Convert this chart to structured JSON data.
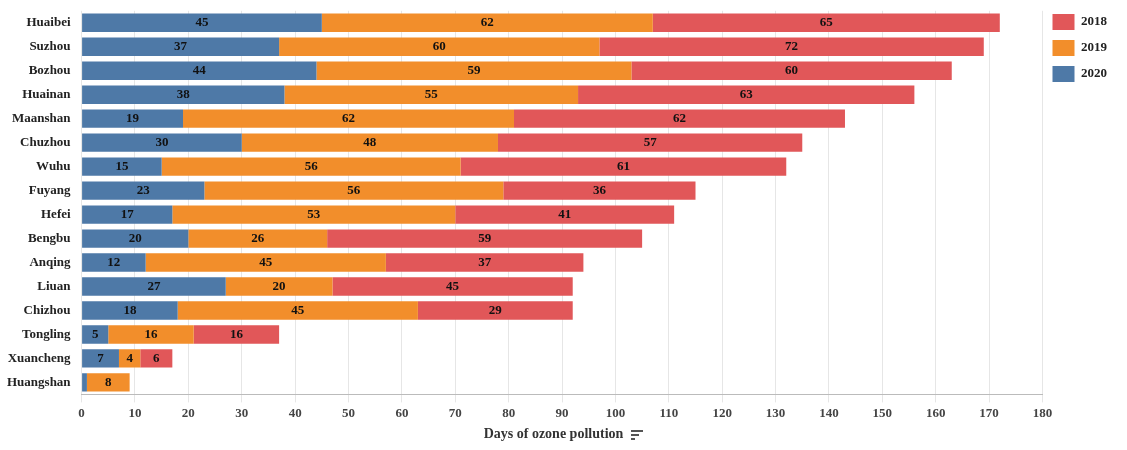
{
  "chart_data": {
    "type": "bar",
    "orientation": "horizontal",
    "stacked": true,
    "xlabel": "Days of ozone pollution",
    "categories": [
      "Huaibei",
      "Suzhou",
      "Bozhou",
      "Huainan",
      "Maanshan",
      "Chuzhou",
      "Wuhu",
      "Fuyang",
      "Hefei",
      "Bengbu",
      "Anqing",
      "Liuan",
      "Chizhou",
      "Tongling",
      "Xuancheng",
      "Huangshan"
    ],
    "series": [
      {
        "name": "2020",
        "color": "#4e79a7",
        "values": [
          45,
          37,
          44,
          38,
          19,
          30,
          15,
          23,
          17,
          20,
          12,
          27,
          18,
          5,
          7,
          1
        ],
        "value_labels": [
          "45",
          "37",
          "44",
          "38",
          "19",
          "30",
          "15",
          "23",
          "17",
          "20",
          "12",
          "27",
          "18",
          "5",
          "7",
          null
        ]
      },
      {
        "name": "2019",
        "color": "#f28e2b",
        "values": [
          62,
          60,
          59,
          55,
          62,
          48,
          56,
          56,
          53,
          26,
          45,
          20,
          45,
          16,
          4,
          8
        ],
        "value_labels": [
          "62",
          "60",
          "59",
          "55",
          "62",
          "48",
          "56",
          "56",
          "53",
          "26",
          "45",
          "20",
          "45",
          "16",
          "4",
          "8"
        ]
      },
      {
        "name": "2018",
        "color": "#e15759",
        "values": [
          65,
          72,
          60,
          63,
          62,
          57,
          61,
          36,
          41,
          59,
          37,
          45,
          29,
          16,
          6,
          null
        ],
        "value_labels": [
          "65",
          "72",
          "60",
          "63",
          "62",
          "57",
          "61",
          "36",
          "41",
          "59",
          "37",
          "45",
          "29",
          "16",
          "6",
          null
        ]
      }
    ],
    "xlim": [
      0,
      180
    ],
    "xticks": [
      0,
      10,
      20,
      30,
      40,
      50,
      60,
      70,
      80,
      90,
      100,
      110,
      120,
      130,
      140,
      150,
      160,
      170,
      180
    ],
    "grid": "x",
    "legend": "top right"
  }
}
